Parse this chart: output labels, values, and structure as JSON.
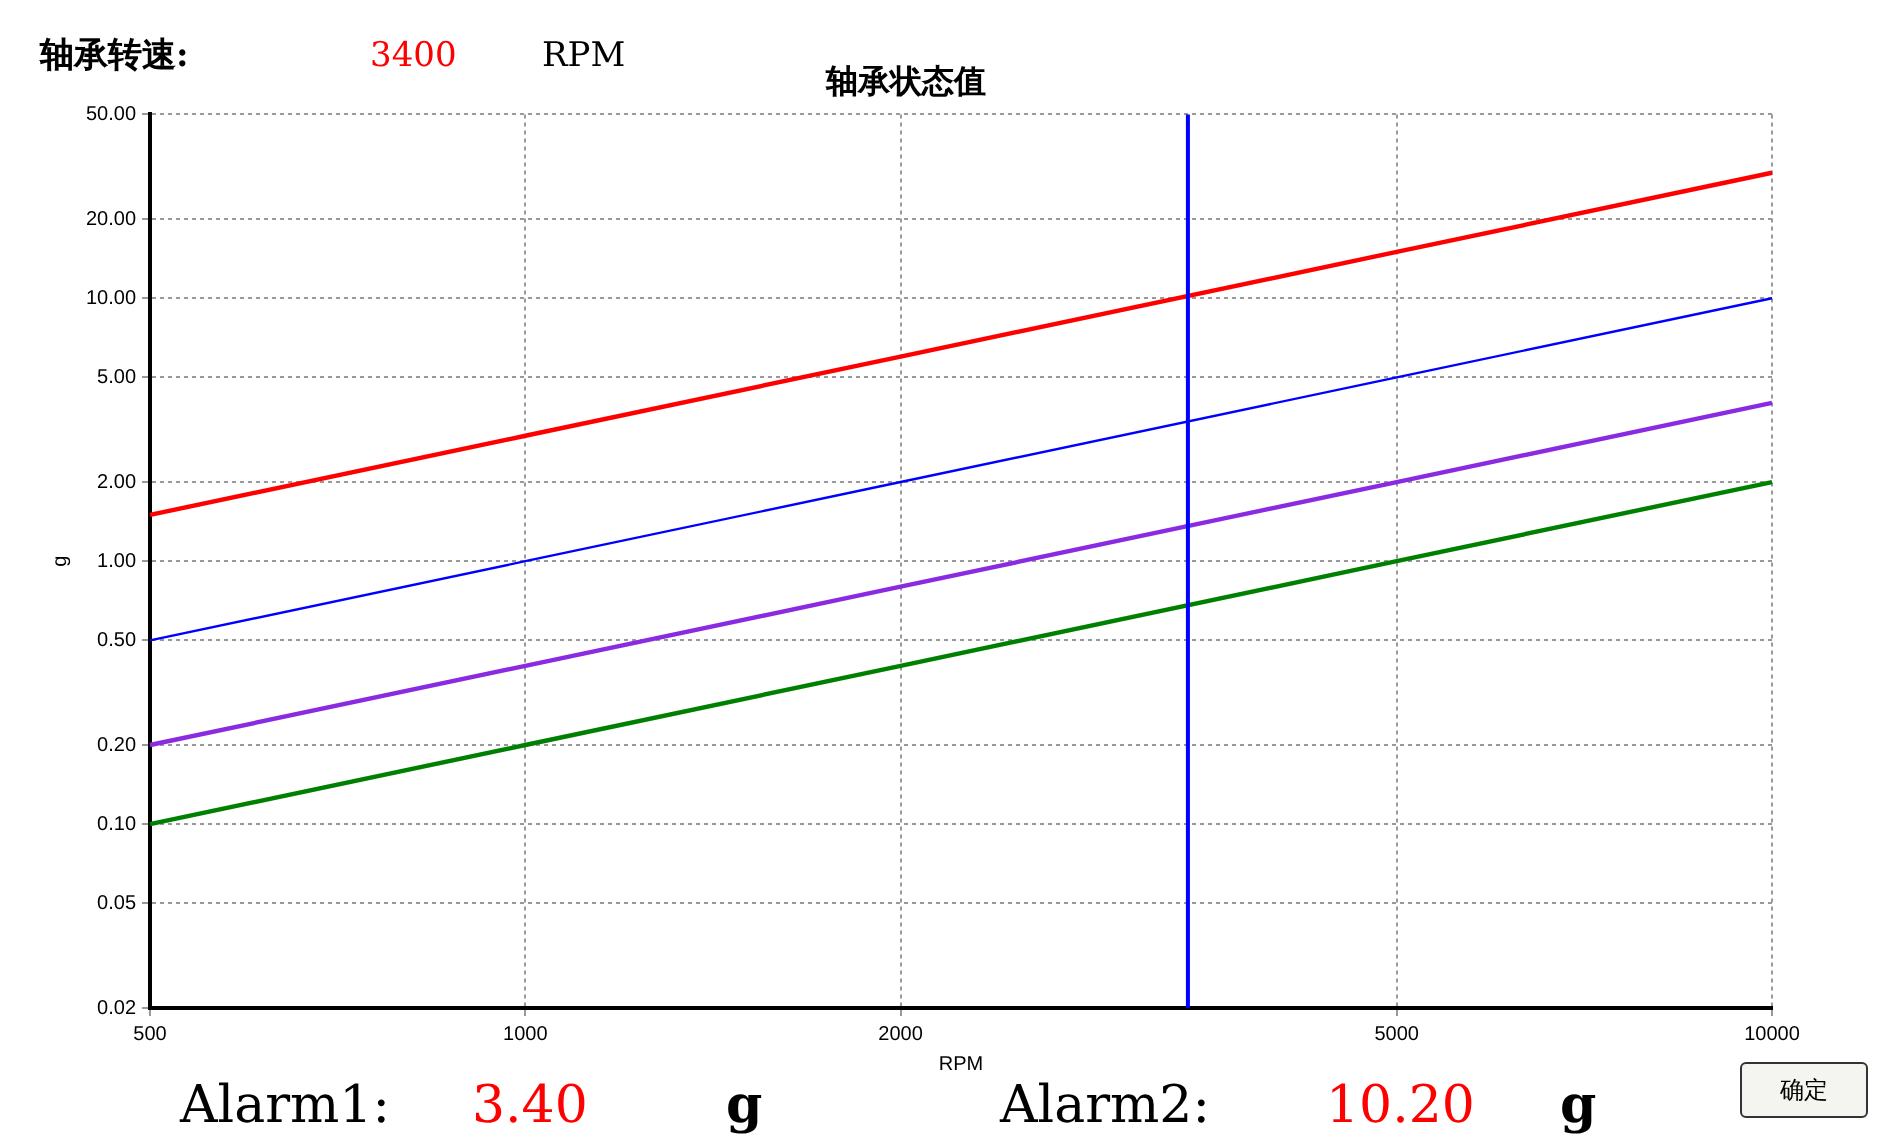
{
  "chart_data": {
    "type": "line",
    "title": "轴承状态值",
    "xlabel": "RPM",
    "ylabel": "g",
    "log": "xy",
    "grid": true,
    "legend": false,
    "marker": "none",
    "line_style": "solid",
    "xlim": [
      500,
      10000
    ],
    "xticks": [
      500,
      1000,
      2000,
      5000,
      10000
    ],
    "ylim": [
      0.02,
      50
    ],
    "yticks": [
      0.02,
      0.05,
      {
        "value": 0.1,
        "label": "0.10"
      },
      {
        "value": 0.2,
        "label": "0.20"
      },
      {
        "value": 0.5,
        "label": "0.50"
      },
      {
        "value": 1,
        "label": "1.00"
      },
      {
        "value": 2,
        "label": "2.00"
      },
      {
        "value": 5,
        "label": "5.00"
      },
      {
        "value": 10,
        "label": "10.00"
      },
      {
        "value": 20,
        "label": "20.00"
      },
      {
        "value": 50,
        "label": "50.00"
      }
    ],
    "x": [
      500,
      1000,
      2000,
      5000,
      10000
    ],
    "series": [
      {
        "color": "#ff0000",
        "values": [
          1.5,
          3,
          6,
          15,
          30
        ]
      },
      {
        "color": "#0000ff",
        "values": [
          0.5,
          1,
          2,
          5,
          10
        ]
      },
      {
        "color": "#8a2be2",
        "values": [
          0.2,
          0.4,
          0.8,
          2,
          4
        ]
      },
      {
        "color": "#008000",
        "values": [
          0.1,
          0.2,
          0.4,
          1,
          2
        ]
      }
    ],
    "ref_lines": [
      {
        "axis": "x",
        "value": 3400,
        "color": "#0000ff"
      }
    ],
    "annotations": [
      "轴承转速:",
      "3400",
      "RPM",
      "Alarm1:",
      "3.40",
      "g",
      "Alarm2:",
      "10.20",
      "g",
      "确定"
    ]
  }
}
